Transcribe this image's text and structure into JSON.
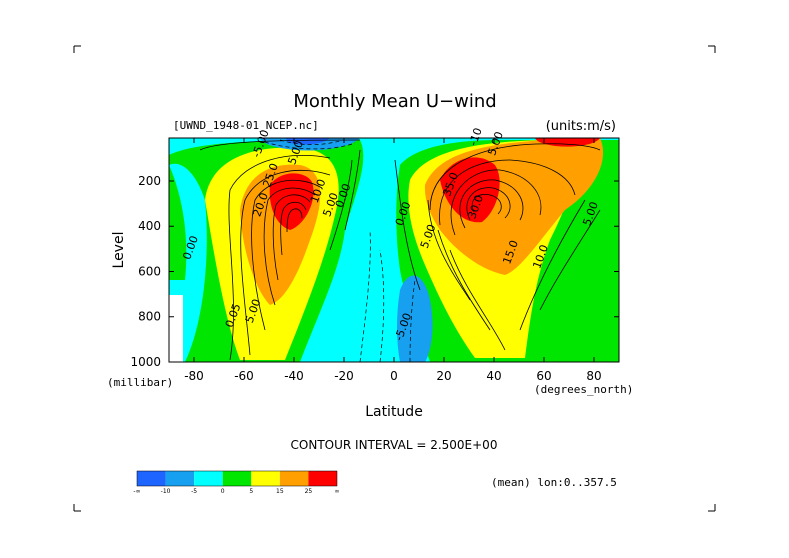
{
  "chart_data": {
    "type": "contour",
    "title": "Monthly Mean U−wind",
    "dataset": "[UWND_1948-01_NCEP.nc]",
    "units": "(units:m/s)",
    "xlabel": "Latitude",
    "xunits": "(degrees_north)",
    "ylabel": "Level",
    "yunits": "(millibar)",
    "xlim": [
      -90,
      90
    ],
    "ylim": [
      1000,
      10
    ],
    "y_inverted": true,
    "x_ticks": [
      "-80",
      "-60",
      "-40",
      "-20",
      "0",
      "20",
      "40",
      "60",
      "80"
    ],
    "x_tick_values": [
      -80,
      -60,
      -40,
      -20,
      0,
      20,
      40,
      60,
      80
    ],
    "y_ticks": [
      "200",
      "400",
      "600",
      "800",
      "1000"
    ],
    "y_tick_values": [
      200,
      400,
      600,
      800,
      1000
    ],
    "contour_interval": "CONTOUR INTERVAL = 2.500E+00",
    "footnote": "(mean) lon:0..357.5",
    "colorbar": {
      "colors": [
        "#1e64ff",
        "#18a0f0",
        "#00ffff",
        "#00e600",
        "#ffff00",
        "#ffa000",
        "#ff0000"
      ],
      "labels": [
        "-∞",
        "-10",
        "-5",
        "0",
        "5",
        "15",
        "25",
        "∞"
      ]
    },
    "features": [
      {
        "name": "southern_jet_core",
        "lat": -45,
        "level": 225,
        "value": 27.5
      },
      {
        "name": "northern_jet_core",
        "lat": 30,
        "level": 200,
        "value": 30
      },
      {
        "name": "tropical_easterlies",
        "lat": 10,
        "level": 800,
        "value": -7.5
      },
      {
        "name": "upper_easterlies_south",
        "lat": -50,
        "level": 30,
        "value": -5
      }
    ],
    "contour_labels": [
      {
        "text": "-5.00",
        "lat": -52,
        "level": 40
      },
      {
        "text": "5.00",
        "lat": -38,
        "level": 80
      },
      {
        "text": "25.0",
        "lat": -48,
        "level": 180
      },
      {
        "text": "20.0",
        "lat": -52,
        "level": 310
      },
      {
        "text": "10.0",
        "lat": -29,
        "level": 250
      },
      {
        "text": "5.00",
        "lat": -24,
        "level": 310
      },
      {
        "text": "0.00",
        "lat": -19,
        "level": 270
      },
      {
        "text": "0.00",
        "lat": -80,
        "level": 500
      },
      {
        "text": "0.05",
        "lat": -63,
        "level": 800
      },
      {
        "text": "5.00",
        "lat": -55,
        "level": 780
      },
      {
        "text": "-10",
        "lat": 34,
        "level": 10
      },
      {
        "text": "5.00",
        "lat": 42,
        "level": 40
      },
      {
        "text": "35.0",
        "lat": 24,
        "level": 220
      },
      {
        "text": "30.0",
        "lat": 34,
        "level": 320
      },
      {
        "text": "0.00",
        "lat": 5,
        "level": 350
      },
      {
        "text": "5.00",
        "lat": 15,
        "level": 450
      },
      {
        "text": "15.0",
        "lat": 48,
        "level": 520
      },
      {
        "text": "10.0",
        "lat": 60,
        "level": 540
      },
      {
        "text": "5.00",
        "lat": 80,
        "level": 350
      },
      {
        "text": "-5.00",
        "lat": 5,
        "level": 850
      }
    ]
  }
}
